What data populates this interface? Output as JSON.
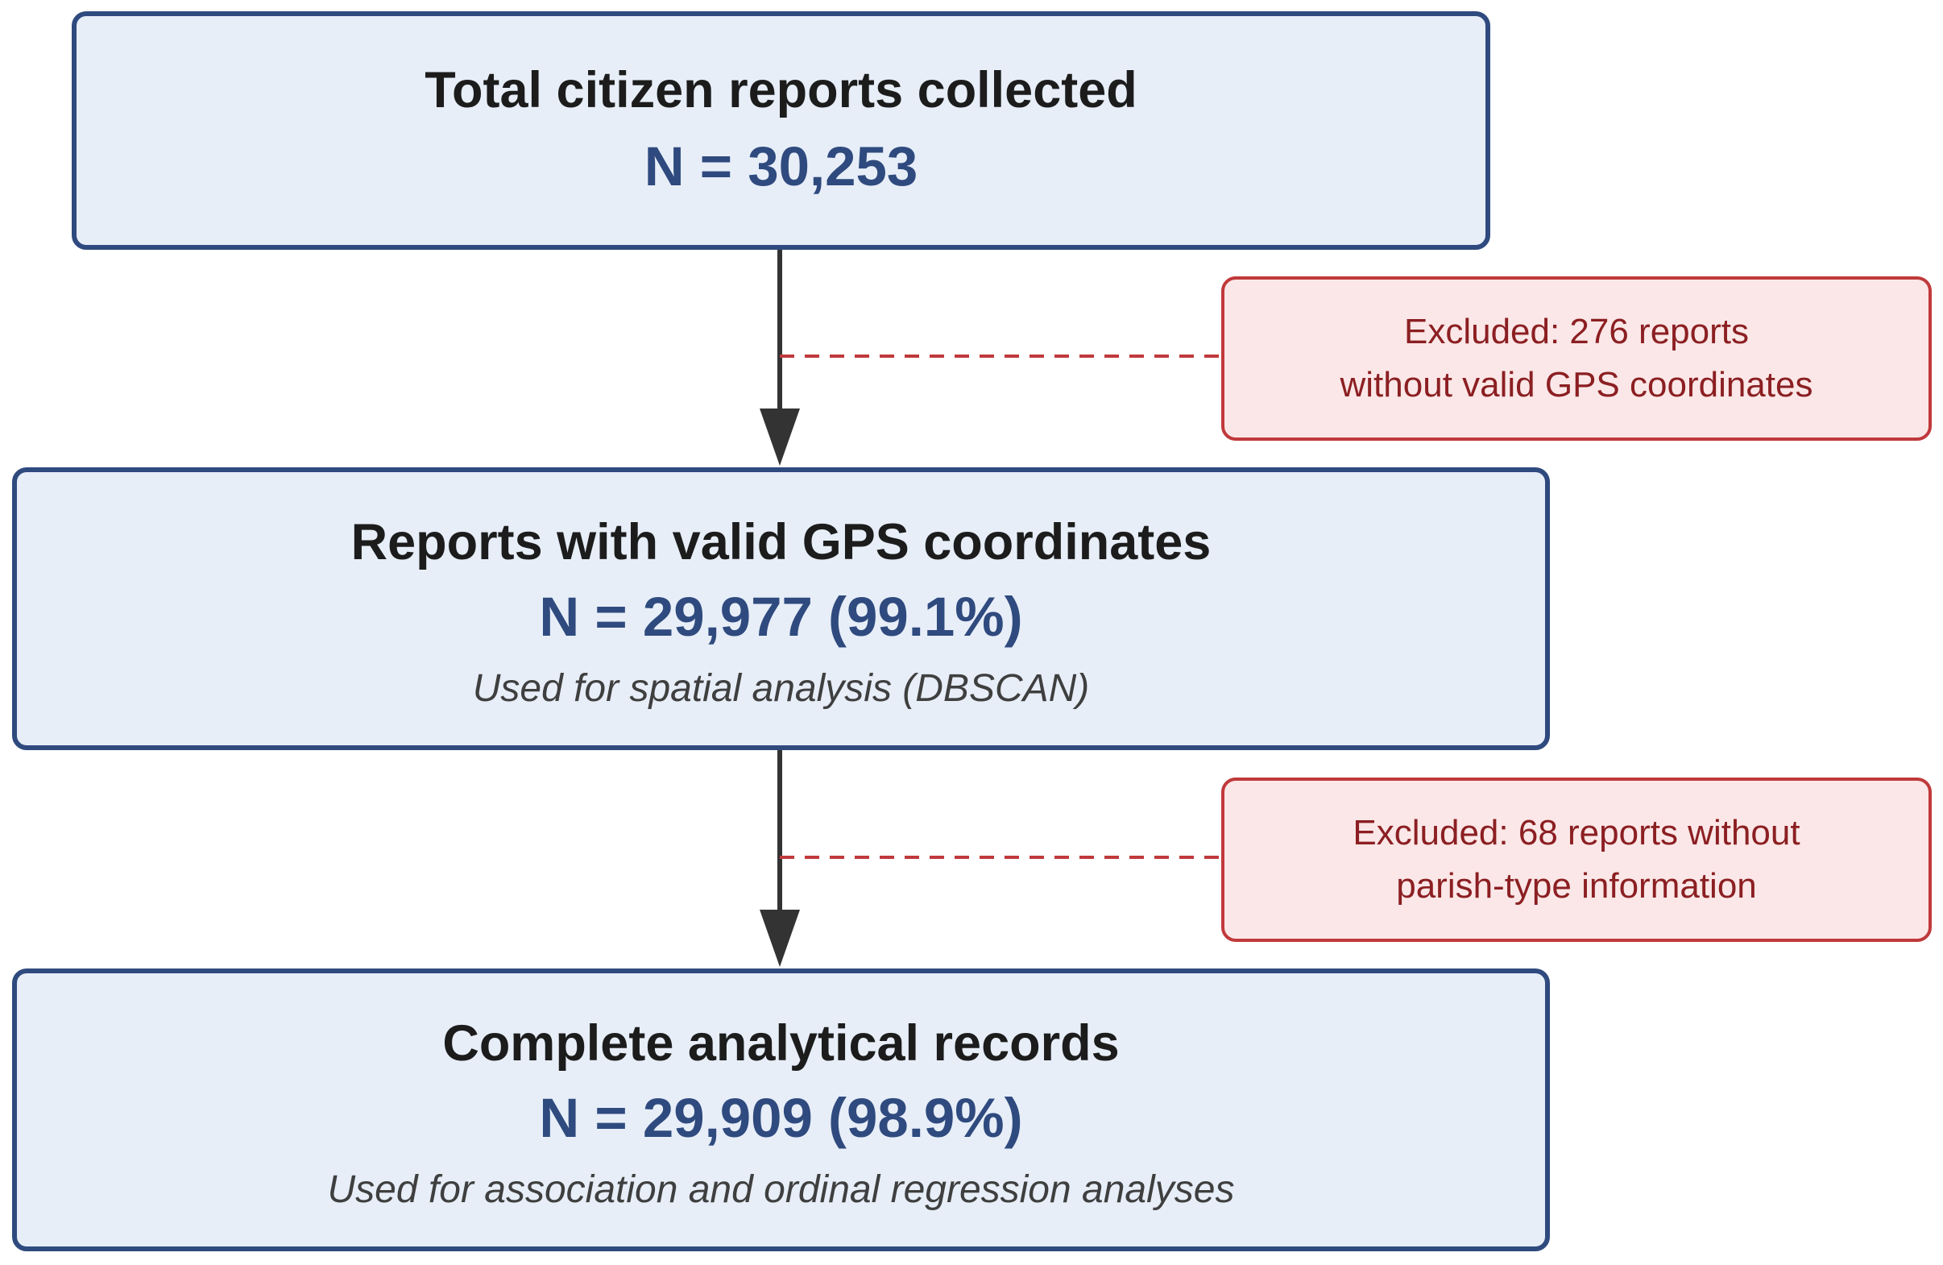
{
  "flowchart": {
    "steps": [
      {
        "title": "Total citizen reports collected",
        "count": "N = 30,253"
      },
      {
        "title": "Reports with valid GPS coordinates",
        "count": "N = 29,977 (99.1%)",
        "note": "Used for spatial analysis (DBSCAN)"
      },
      {
        "title": "Complete analytical records",
        "count": "N = 29,909 (98.9%)",
        "note": "Used for association and ordinal regression analyses"
      }
    ],
    "exclusions": [
      {
        "line1": "Excluded: 276 reports",
        "line2": "without valid GPS coordinates"
      },
      {
        "line1": "Excluded: 68 reports without",
        "line2": "parish-type information"
      }
    ]
  },
  "colors": {
    "box_fill": "#e7eef8",
    "box_border": "#2f4a7e",
    "count_text": "#2f4a7e",
    "exclusion_fill": "#fbe7e7",
    "exclusion_border": "#c0393b",
    "exclusion_text": "#8b1f22",
    "arrow": "#333333"
  }
}
